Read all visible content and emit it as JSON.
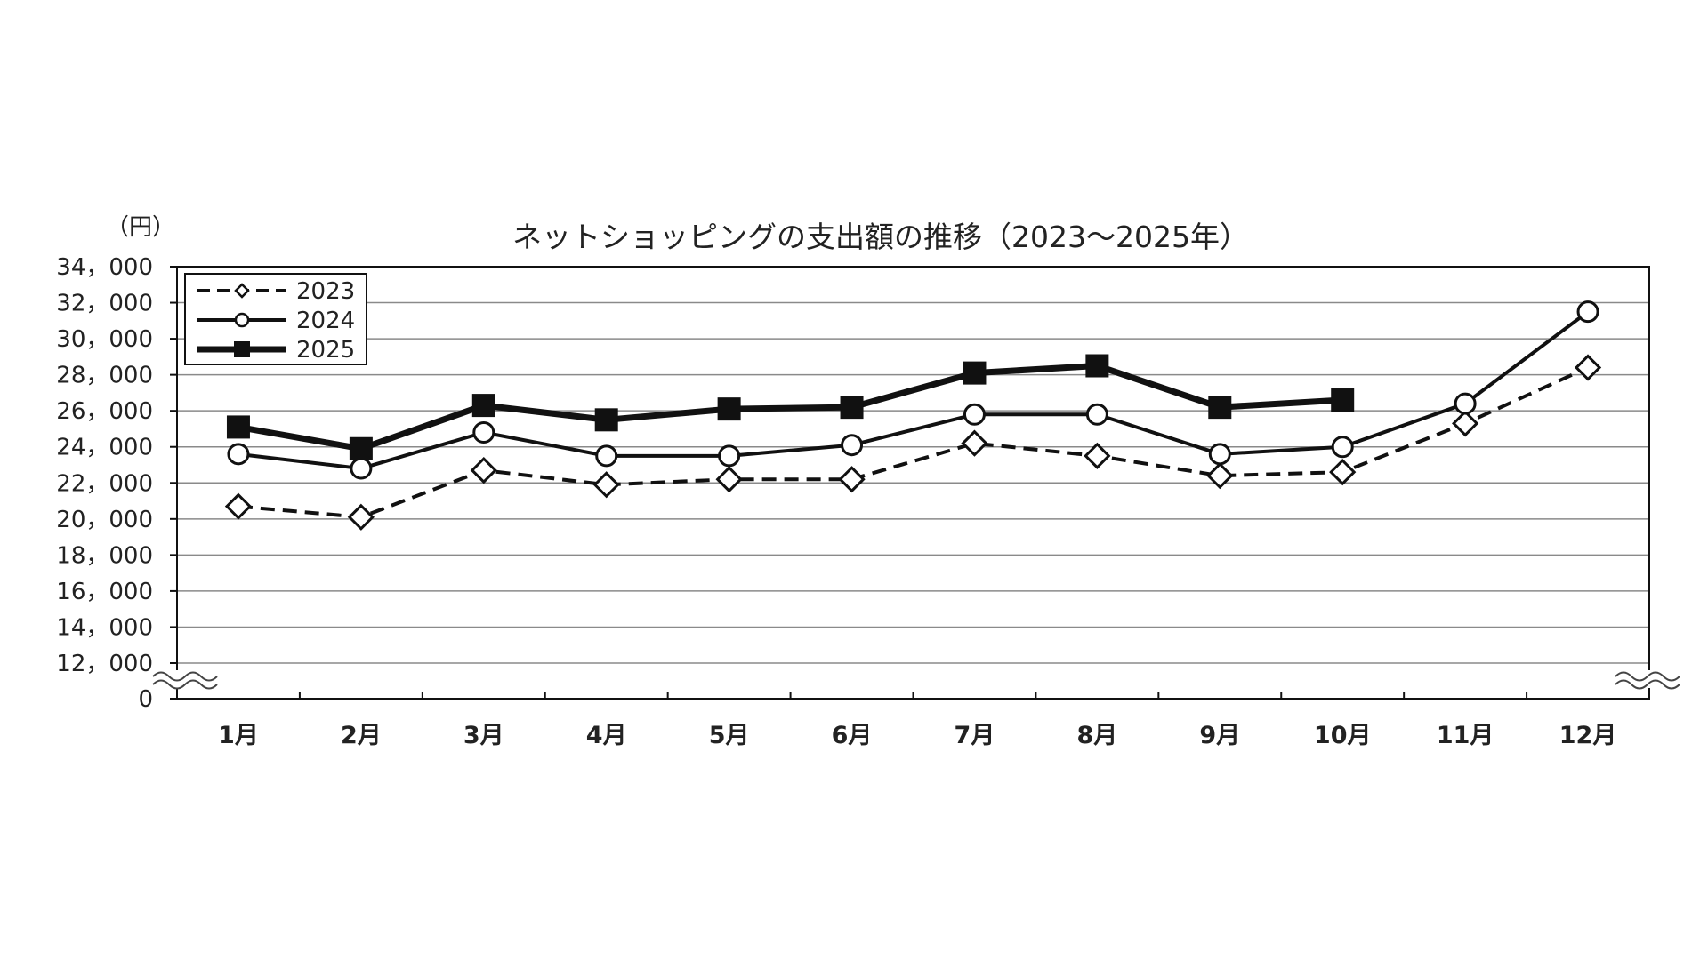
{
  "chart_data": {
    "type": "line",
    "title": "ネットショッピングの支出額の推移（2023～2025年）",
    "ylabel": "（円）",
    "xlabel": "",
    "categories": [
      "1月",
      "2月",
      "3月",
      "4月",
      "5月",
      "6月",
      "7月",
      "8月",
      "9月",
      "10月",
      "11月",
      "12月"
    ],
    "yticks": [
      0,
      12000,
      14000,
      16000,
      18000,
      20000,
      22000,
      24000,
      26000,
      28000,
      30000,
      32000,
      34000
    ],
    "ytick_labels": [
      "0",
      "12，000",
      "14，000",
      "16，000",
      "18，000",
      "20，000",
      "22，000",
      "24，000",
      "26，000",
      "28，000",
      "30，000",
      "32，000",
      "34，000"
    ],
    "ylim": [
      12000,
      34000
    ],
    "axis_break": "between 0 and 12,000",
    "grid": true,
    "legend_position": "top-left",
    "series": [
      {
        "name": "2023",
        "line_style": "dashed",
        "marker": "open-diamond",
        "values": [
          20700,
          20100,
          22700,
          21900,
          22200,
          22200,
          24200,
          23500,
          22400,
          22600,
          25300,
          28400
        ]
      },
      {
        "name": "2024",
        "line_style": "solid",
        "marker": "open-circle",
        "values": [
          23600,
          22800,
          24800,
          23500,
          23500,
          24100,
          25800,
          25800,
          23600,
          24000,
          26400,
          31500
        ]
      },
      {
        "name": "2025",
        "line_style": "solid-thick",
        "marker": "filled-square",
        "values": [
          25100,
          23900,
          26300,
          25500,
          26100,
          26200,
          28100,
          28500,
          26200,
          26600,
          null,
          null
        ]
      }
    ]
  }
}
